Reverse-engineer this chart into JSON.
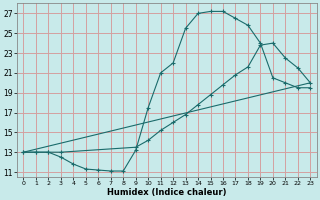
{
  "xlabel": "Humidex (Indice chaleur)",
  "bg_color": "#c8eaea",
  "grid_color": "#d4a0a0",
  "line_color": "#1a6b6b",
  "xlim": [
    -0.5,
    23.5
  ],
  "ylim": [
    10.5,
    28
  ],
  "xticks": [
    0,
    1,
    2,
    3,
    4,
    5,
    6,
    7,
    8,
    9,
    10,
    11,
    12,
    13,
    14,
    15,
    16,
    17,
    18,
    19,
    20,
    21,
    22,
    23
  ],
  "yticks": [
    11,
    13,
    15,
    17,
    19,
    21,
    23,
    25,
    27
  ],
  "curve1_x": [
    0,
    1,
    2,
    3,
    4,
    5,
    6,
    7,
    8,
    9,
    10,
    11,
    12,
    13,
    14,
    15,
    16,
    17,
    18,
    19,
    20,
    21,
    22,
    23
  ],
  "curve1_y": [
    13,
    13,
    13,
    12.5,
    11.8,
    11.3,
    11.2,
    11.1,
    11.1,
    13.2,
    17.5,
    21.0,
    22.0,
    25.5,
    27.0,
    27.2,
    27.2,
    26.5,
    25.8,
    24.0,
    20.5,
    20.0,
    19.5,
    19.5
  ],
  "curve2_x": [
    0,
    1,
    2,
    3,
    9,
    10,
    11,
    12,
    13,
    14,
    15,
    16,
    17,
    18,
    19,
    20,
    21,
    22,
    23
  ],
  "curve2_y": [
    13,
    13,
    13,
    13,
    13.5,
    14.2,
    15.2,
    16.0,
    16.8,
    17.8,
    18.8,
    19.8,
    20.8,
    21.6,
    23.8,
    24.0,
    22.5,
    21.5,
    20.0
  ],
  "curve3_x": [
    0,
    23
  ],
  "curve3_y": [
    13,
    20.0
  ]
}
